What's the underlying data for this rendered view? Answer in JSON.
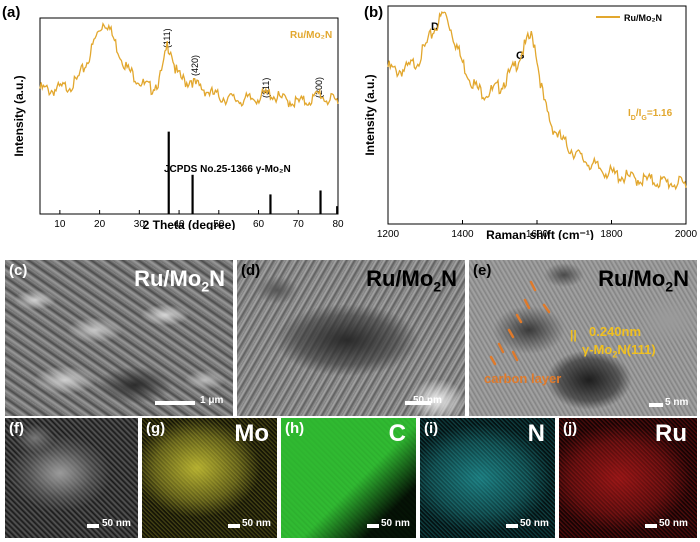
{
  "colors": {
    "spectrum": "#E2A72E",
    "reference": "#000000",
    "panel_text_light": "#ffffff",
    "annotation_gold": "#F0C020",
    "annotation_orange": "#E07A2A",
    "mo_map": "#D8D23A",
    "c_map": "#2FB830",
    "n_map": "#2EC4C8",
    "ru_map": "#D82020"
  },
  "panels": {
    "a": {
      "letter": "(a)",
      "legend": "Ru/Mo₂N",
      "reference_label": "JCPDS No.25-1366 γ-Mo₂N",
      "peaks": [
        "(111)",
        "(420)",
        "(311)",
        "(200)"
      ]
    },
    "b": {
      "letter": "(b)",
      "legend": "Ru/Mo₂N",
      "band_d": "D",
      "band_g": "G",
      "ratio": "I_D/I_G=1.16"
    },
    "c": {
      "letter": "(c)",
      "title": "Ru/Mo₂N",
      "scale": "1 μm"
    },
    "d": {
      "letter": "(d)",
      "title": "Ru/Mo₂N",
      "scale": "50 nm"
    },
    "e": {
      "letter": "(e)",
      "title": "Ru/Mo₂N",
      "lattice": "0.240nm",
      "plane": "γ-Mo₂N(111)",
      "carbon": "carbon layer",
      "scale": "5 nm"
    },
    "f": {
      "letter": "(f)",
      "scale": "50 nm"
    },
    "g": {
      "letter": "(g)",
      "element": "Mo",
      "scale": "50 nm"
    },
    "h": {
      "letter": "(h)",
      "element": "C",
      "scale": "50 nm"
    },
    "i": {
      "letter": "(i)",
      "element": "N",
      "scale": "50 nm"
    },
    "j": {
      "letter": "(j)",
      "element": "Ru",
      "scale": "50 nm"
    }
  },
  "chart_data": [
    {
      "type": "line",
      "xlabel": "2 Theta (degree)",
      "ylabel": "Intensity (a.u.)",
      "xlim": [
        5,
        80
      ],
      "xticks": [
        10,
        20,
        30,
        40,
        50,
        60,
        70,
        80
      ],
      "series": [
        {
          "name": "Ru/Mo₂N",
          "x": [
            5,
            8,
            11,
            14,
            17,
            19,
            21,
            22,
            23,
            25,
            27,
            29,
            31,
            33,
            35,
            36,
            37,
            38,
            39,
            40,
            42,
            43,
            44,
            46,
            48,
            50,
            52,
            54,
            56,
            58,
            60,
            62,
            63,
            64,
            66,
            68,
            70,
            72,
            74,
            75,
            75.5,
            76,
            77,
            78,
            80
          ],
          "y": [
            0.64,
            0.63,
            0.645,
            0.67,
            0.78,
            0.9,
            0.98,
            0.97,
            0.92,
            0.82,
            0.74,
            0.7,
            0.66,
            0.64,
            0.68,
            0.75,
            0.86,
            0.84,
            0.74,
            0.7,
            0.67,
            0.69,
            0.66,
            0.64,
            0.615,
            0.6,
            0.59,
            0.585,
            0.58,
            0.585,
            0.595,
            0.61,
            0.615,
            0.6,
            0.585,
            0.575,
            0.57,
            0.575,
            0.59,
            0.61,
            0.62,
            0.6,
            0.585,
            0.58,
            0.575
          ]
        }
      ],
      "reference_lines": [
        {
          "x": 37.4,
          "height": 0.42
        },
        {
          "x": 43.4,
          "height": 0.2
        },
        {
          "x": 63.0,
          "height": 0.1
        },
        {
          "x": 75.6,
          "height": 0.12
        },
        {
          "x": 79.8,
          "height": 0.04
        }
      ]
    },
    {
      "type": "line",
      "xlabel": "Raman shift (cm⁻¹)",
      "ylabel": "Intensity (a.u.)",
      "xlim": [
        1200,
        2000
      ],
      "xticks": [
        1200,
        1400,
        1600,
        1800,
        2000
      ],
      "series": [
        {
          "name": "Ru/Mo₂N",
          "x": [
            1200,
            1220,
            1250,
            1280,
            1300,
            1320,
            1340,
            1350,
            1360,
            1380,
            1400,
            1420,
            1440,
            1460,
            1480,
            1500,
            1520,
            1540,
            1560,
            1575,
            1585,
            1595,
            1605,
            1620,
            1640,
            1660,
            1680,
            1700,
            1720,
            1740,
            1760,
            1800,
            1850,
            1900,
            1950,
            2000
          ],
          "y": [
            0.72,
            0.7,
            0.71,
            0.75,
            0.81,
            0.88,
            0.94,
            0.97,
            0.94,
            0.84,
            0.74,
            0.67,
            0.62,
            0.6,
            0.61,
            0.63,
            0.67,
            0.72,
            0.79,
            0.84,
            0.86,
            0.82,
            0.7,
            0.55,
            0.45,
            0.4,
            0.36,
            0.33,
            0.3,
            0.28,
            0.26,
            0.23,
            0.21,
            0.2,
            0.19,
            0.18
          ]
        }
      ]
    }
  ]
}
